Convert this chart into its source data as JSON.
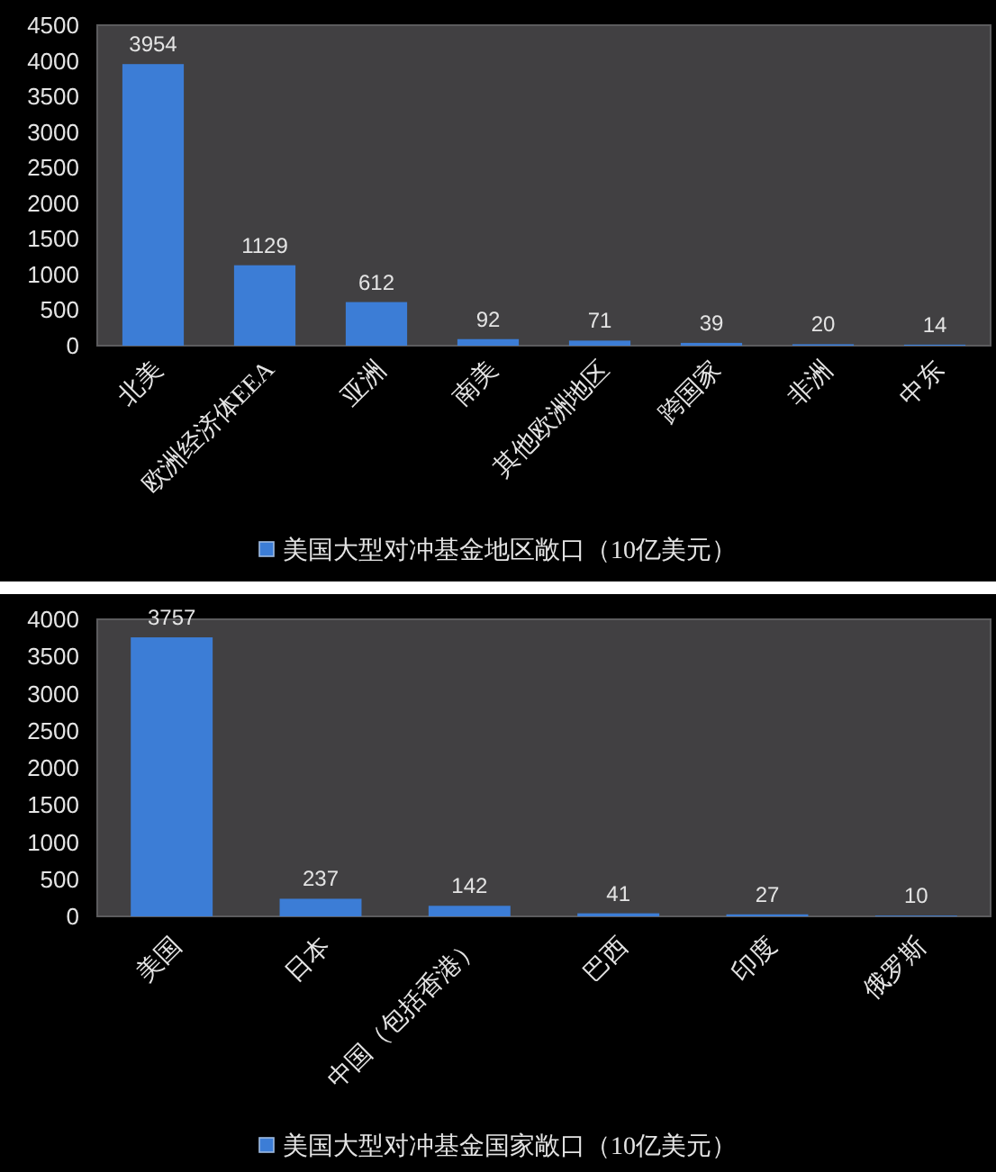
{
  "chart_data": [
    {
      "type": "bar",
      "categories": [
        "北美",
        "欧洲经济体EEA",
        "亚洲",
        "南美",
        "其他欧洲地区",
        "跨国家",
        "非洲",
        "中东"
      ],
      "series": [
        {
          "name": "美国大型对冲基金地区敞口（10亿美元）",
          "color": "#3c7dd6",
          "values": [
            3954,
            1129,
            612,
            92,
            71,
            39,
            20,
            14
          ]
        }
      ],
      "ylim": [
        0,
        4500
      ],
      "yticks": [
        0,
        500,
        1000,
        1500,
        2000,
        2500,
        3000,
        3500,
        4000,
        4500
      ],
      "data_labels": true,
      "legend": "bottom"
    },
    {
      "type": "bar",
      "categories": [
        "美国",
        "日本",
        "中国（包括香港）",
        "巴西",
        "印度",
        "俄罗斯"
      ],
      "series": [
        {
          "name": "美国大型对冲基金国家敞口（10亿美元）",
          "color": "#3c7dd6",
          "values": [
            3757,
            237,
            142,
            41,
            27,
            10
          ]
        }
      ],
      "ylim": [
        0,
        4000
      ],
      "yticks": [
        0,
        500,
        1000,
        1500,
        2000,
        2500,
        3000,
        3500,
        4000
      ],
      "data_labels": true,
      "legend": "bottom"
    }
  ]
}
